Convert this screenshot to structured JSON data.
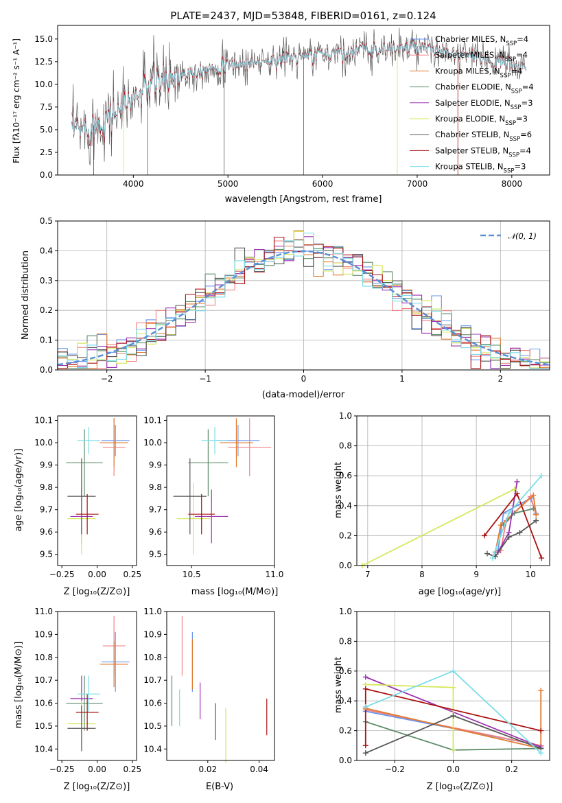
{
  "colors": {
    "s1": "#6495ED",
    "s2": "#F08080",
    "s3": "#E07B30",
    "s4": "#5E8C6A",
    "s5": "#9B30B0",
    "s6": "#D4E85A",
    "s7": "#555555",
    "s8": "#AA1111",
    "s9": "#7ADDE8",
    "gauss": "#5B8FD6",
    "grid": "#b0b0b0"
  },
  "chart_data": [
    {
      "id": "spectrum",
      "type": "line",
      "title": "PLATE=2437, MJD=53848, FIBERID=0161, z=0.124",
      "xlabel": "wavelength [Angstrom, rest frame]",
      "ylabel": "Flux [fλ10⁻¹⁷ erg cm⁻² s⁻¹ A⁻¹]",
      "xlim": [
        3200,
        8400
      ],
      "ylim": [
        0,
        16.5
      ],
      "xticks": [
        4000,
        5000,
        6000,
        7000,
        8000
      ],
      "xtick_labels": [
        "4000",
        "5000",
        "6000",
        "7000",
        "8000"
      ],
      "yticks": [
        0,
        2.5,
        5,
        7.5,
        10,
        12.5,
        15
      ],
      "ytick_labels": [
        "0.0",
        "2.5",
        "5.0",
        "7.5",
        "10.0",
        "12.5",
        "15.0"
      ],
      "grid": false,
      "legend_position": "right",
      "continuum": {
        "x": [
          3350,
          3600,
          3800,
          4000,
          4200,
          4400,
          4600,
          4800,
          5000,
          5200,
          5400,
          5600,
          5800,
          6000,
          6200,
          6400,
          6600,
          6800,
          7000,
          7200,
          7400,
          7600,
          7800,
          8000,
          8150
        ],
        "y": [
          4.8,
          5.5,
          6.8,
          8.5,
          10.0,
          10.8,
          11.3,
          11.8,
          12.0,
          12.3,
          12.5,
          12.9,
          13.0,
          13.4,
          13.5,
          13.8,
          13.9,
          14.0,
          14.0,
          13.7,
          13.3,
          13.0,
          12.6,
          12.2,
          11.8
        ]
      },
      "series": [
        {
          "name": "Chabrier MILES, N_SSP=4",
          "color_key": "s1"
        },
        {
          "name": "Salpeter MILES, N_SSP=4",
          "color_key": "s2"
        },
        {
          "name": "Kroupa MILES, N_SSP=4",
          "color_key": "s3"
        },
        {
          "name": "Chabrier ELODIE, N_SSP=4",
          "color_key": "s4"
        },
        {
          "name": "Salpeter ELODIE, N_SSP=3",
          "color_key": "s5"
        },
        {
          "name": "Kroupa ELODIE, N_SSP=3",
          "color_key": "s6"
        },
        {
          "name": "Chabrier STELIB, N_SSP=6",
          "color_key": "s7"
        },
        {
          "name": "Salpeter STELIB, N_SSP=4",
          "color_key": "s8"
        },
        {
          "name": "Kroupa STELIB, N_SSP=3",
          "color_key": "s9"
        }
      ]
    },
    {
      "id": "residuals",
      "type": "area",
      "xlabel": "(data-model)/error",
      "ylabel": "Normed distribution",
      "xlim": [
        -2.5,
        2.5
      ],
      "ylim": [
        0,
        0.5
      ],
      "xticks": [
        -2,
        -1,
        0,
        1,
        2
      ],
      "xtick_labels": [
        "−2",
        "−1",
        "0",
        "1",
        "2"
      ],
      "yticks": [
        0,
        0.1,
        0.2,
        0.3,
        0.4,
        0.5
      ],
      "ytick_labels": [
        "0.0",
        "0.1",
        "0.2",
        "0.3",
        "0.4",
        "0.5"
      ],
      "grid": true,
      "legend": [
        "𝒩(0, 1)"
      ],
      "legend_position": "top-right",
      "bin_width": 0.1,
      "gaussian": {
        "mean": 0,
        "sigma": 1,
        "style": "dashed"
      }
    },
    {
      "id": "age-vs-Z",
      "type": "scatter",
      "xlabel": "Z [log₁₀(Z/Z⊙)]",
      "ylabel": "age  [log₁₀(age/yr)]",
      "xlim": [
        -0.28,
        0.28
      ],
      "ylim": [
        9.45,
        10.12
      ],
      "xticks": [
        -0.25,
        0,
        0.25
      ],
      "xtick_labels": [
        "−0.25",
        "0.00",
        "0.25"
      ],
      "yticks": [
        9.5,
        9.6,
        9.7,
        9.8,
        9.9,
        10.0,
        10.1
      ],
      "ytick_labels": [
        "9.5",
        "9.6",
        "9.7",
        "9.8",
        "9.9",
        "10.0",
        "10.1"
      ],
      "points": [
        {
          "c": "s1",
          "x": 0.13,
          "xe": 0.1,
          "y": 10.01,
          "ye": 0.07
        },
        {
          "c": "s2",
          "x": 0.12,
          "xe": 0.08,
          "y": 9.98,
          "ye": 0.13
        },
        {
          "c": "s3",
          "x": 0.12,
          "xe": 0.1,
          "y": 10.0,
          "ye": 0.11
        },
        {
          "c": "s4",
          "x": -0.09,
          "xe": 0.13,
          "y": 9.91,
          "ye": 0.15
        },
        {
          "c": "s5",
          "x": -0.11,
          "xe": 0.08,
          "y": 9.67,
          "ye": 0.12
        },
        {
          "c": "s6",
          "x": -0.11,
          "xe": 0.1,
          "y": 9.66,
          "ye": 0.16
        },
        {
          "c": "s7",
          "x": -0.11,
          "xe": 0.1,
          "y": 9.76,
          "ye": 0.17
        },
        {
          "c": "s8",
          "x": -0.07,
          "xe": 0.08,
          "y": 9.68,
          "ye": 0.09
        },
        {
          "c": "s9",
          "x": -0.06,
          "xe": 0.08,
          "y": 10.01,
          "ye": 0.06
        }
      ]
    },
    {
      "id": "age-vs-mass",
      "type": "scatter",
      "xlabel": "mass [log₁₀(M/M⊙)]",
      "ylabel": "",
      "xlim": [
        10.35,
        11.0
      ],
      "ylim": [
        9.45,
        10.12
      ],
      "xticks": [
        10.5,
        11.0
      ],
      "xtick_labels": [
        "10.5",
        "11.0"
      ],
      "yticks": [
        9.5,
        9.6,
        9.7,
        9.8,
        9.9,
        10.0,
        10.1
      ],
      "ytick_labels": [
        "9.5",
        "9.6",
        "9.7",
        "9.8",
        "9.9",
        "10.0",
        "10.1"
      ],
      "points": [
        {
          "c": "s1",
          "x": 10.78,
          "xe": 0.13,
          "y": 10.01,
          "ye": 0.07
        },
        {
          "c": "s2",
          "x": 10.85,
          "xe": 0.13,
          "y": 9.98,
          "ye": 0.13
        },
        {
          "c": "s3",
          "x": 10.77,
          "xe": 0.1,
          "y": 10.0,
          "ye": 0.11
        },
        {
          "c": "s4",
          "x": 10.6,
          "xe": 0.12,
          "y": 9.91,
          "ye": 0.15
        },
        {
          "c": "s5",
          "x": 10.62,
          "xe": 0.1,
          "y": 9.67,
          "ye": 0.12
        },
        {
          "c": "s6",
          "x": 10.51,
          "xe": 0.1,
          "y": 9.66,
          "ye": 0.16
        },
        {
          "c": "s7",
          "x": 10.49,
          "xe": 0.1,
          "y": 9.76,
          "ye": 0.17
        },
        {
          "c": "s8",
          "x": 10.56,
          "xe": 0.08,
          "y": 9.68,
          "ye": 0.09
        },
        {
          "c": "s9",
          "x": 10.64,
          "xe": 0.08,
          "y": 10.01,
          "ye": 0.06
        }
      ]
    },
    {
      "id": "weight-vs-age",
      "type": "line",
      "xlabel": "age  [log₁₀(age/yr)]",
      "ylabel": "mass weight",
      "xlim": [
        6.8,
        10.35
      ],
      "ylim": [
        0,
        1.0
      ],
      "xticks": [
        7,
        8,
        9,
        10
      ],
      "xtick_labels": [
        "7",
        "8",
        "9",
        "10"
      ],
      "yticks": [
        0,
        0.2,
        0.4,
        0.6,
        0.8,
        1.0
      ],
      "ytick_labels": [
        "0.0",
        "0.2",
        "0.4",
        "0.6",
        "0.8",
        "1.0"
      ],
      "grid": true,
      "series": [
        {
          "c": "s1",
          "x": [
            9.4,
            9.5,
            10.0,
            10.1
          ],
          "y": [
            0.1,
            0.35,
            0.45,
            0.35
          ]
        },
        {
          "c": "s2",
          "x": [
            9.45,
            9.55,
            10.0,
            10.1
          ],
          "y": [
            0.1,
            0.3,
            0.46,
            0.34
          ]
        },
        {
          "c": "s3",
          "x": [
            9.35,
            9.45,
            10.05,
            10.1
          ],
          "y": [
            0.09,
            0.27,
            0.47,
            0.34
          ]
        },
        {
          "c": "s4",
          "x": [
            9.5,
            9.7,
            10.05
          ],
          "y": [
            0.27,
            0.35,
            0.38
          ]
        },
        {
          "c": "s5",
          "x": [
            9.4,
            9.6,
            9.75
          ],
          "y": [
            0.09,
            0.22,
            0.56
          ]
        },
        {
          "c": "s6",
          "x": [
            6.9,
            9.7
          ],
          "y": [
            0.0,
            0.51
          ]
        },
        {
          "c": "s7",
          "x": [
            9.2,
            9.35,
            9.6,
            9.8,
            10.1
          ],
          "y": [
            0.08,
            0.06,
            0.19,
            0.22,
            0.3
          ]
        },
        {
          "c": "s8",
          "x": [
            9.15,
            9.75,
            10.2
          ],
          "y": [
            0.2,
            0.48,
            0.05
          ]
        },
        {
          "c": "s9",
          "x": [
            9.3,
            9.6,
            10.2
          ],
          "y": [
            0.05,
            0.35,
            0.6
          ]
        }
      ]
    },
    {
      "id": "mass-vs-Z",
      "type": "scatter",
      "xlabel": "Z [log₁₀(Z/Z⊙)]",
      "ylabel": "mass [log₁₀(M/M⊙)]",
      "xlim": [
        -0.28,
        0.28
      ],
      "ylim": [
        10.35,
        11.0
      ],
      "xticks": [
        -0.25,
        0,
        0.25
      ],
      "xtick_labels": [
        "−0.25",
        "0.00",
        "0.25"
      ],
      "yticks": [
        10.4,
        10.5,
        10.6,
        10.7,
        10.8,
        10.9,
        11.0
      ],
      "ytick_labels": [
        "10.4",
        "10.5",
        "10.6",
        "10.7",
        "10.8",
        "10.9",
        "11.0"
      ],
      "points": [
        {
          "c": "s1",
          "x": 0.13,
          "xe": 0.1,
          "y": 10.78,
          "ye": 0.13
        },
        {
          "c": "s2",
          "x": 0.12,
          "xe": 0.08,
          "y": 10.85,
          "ye": 0.13
        },
        {
          "c": "s3",
          "x": 0.12,
          "xe": 0.1,
          "y": 10.77,
          "ye": 0.1
        },
        {
          "c": "s4",
          "x": -0.09,
          "xe": 0.13,
          "y": 10.6,
          "ye": 0.12
        },
        {
          "c": "s5",
          "x": -0.11,
          "xe": 0.08,
          "y": 10.62,
          "ye": 0.1
        },
        {
          "c": "s6",
          "x": -0.11,
          "xe": 0.1,
          "y": 10.51,
          "ye": 0.1
        },
        {
          "c": "s7",
          "x": -0.11,
          "xe": 0.1,
          "y": 10.49,
          "ye": 0.1
        },
        {
          "c": "s8",
          "x": -0.07,
          "xe": 0.08,
          "y": 10.56,
          "ye": 0.08
        },
        {
          "c": "s9",
          "x": -0.06,
          "xe": 0.08,
          "y": 10.64,
          "ye": 0.08
        }
      ]
    },
    {
      "id": "mass-vs-ebv",
      "type": "scatter",
      "xlabel": "E(B-V)",
      "ylabel": "",
      "xlim": [
        0.004,
        0.046
      ],
      "ylim": [
        10.35,
        11.0
      ],
      "xticks": [
        0.02,
        0.04
      ],
      "xtick_labels": [
        "0.02",
        "0.04"
      ],
      "yticks": [
        10.4,
        10.5,
        10.6,
        10.7,
        10.8,
        10.9,
        11.0
      ],
      "ytick_labels": [
        "10.4",
        "10.5",
        "10.6",
        "10.7",
        "10.8",
        "10.9",
        "11.0"
      ],
      "points": [
        {
          "c": "s1",
          "x": 0.014,
          "xe": 0,
          "y": 10.78,
          "ye": 0.13
        },
        {
          "c": "s2",
          "x": 0.01,
          "xe": 0,
          "y": 10.85,
          "ye": 0.13
        },
        {
          "c": "s3",
          "x": 0.014,
          "xe": 0,
          "y": 10.77,
          "ye": 0.11
        },
        {
          "c": "s4",
          "x": 0.006,
          "xe": 0,
          "y": 10.61,
          "ye": 0.11
        },
        {
          "c": "s5",
          "x": 0.017,
          "xe": 0,
          "y": 10.61,
          "ye": 0.08
        },
        {
          "c": "s6",
          "x": 0.027,
          "xe": 0,
          "y": 10.46,
          "ye": 0.12
        },
        {
          "c": "s7",
          "x": 0.023,
          "xe": 0,
          "y": 10.52,
          "ye": 0.08
        },
        {
          "c": "s8",
          "x": 0.043,
          "xe": 0,
          "y": 10.54,
          "ye": 0.08
        },
        {
          "c": "s9",
          "x": 0.009,
          "xe": 0,
          "y": 10.58,
          "ye": 0.08
        }
      ]
    },
    {
      "id": "weight-vs-Z",
      "type": "line",
      "xlabel": "Z [log₁₀(Z/Z⊙)]",
      "ylabel": "mass weight",
      "xlim": [
        -0.33,
        0.33
      ],
      "ylim": [
        0,
        1.0
      ],
      "xticks": [
        -0.2,
        0,
        0.2
      ],
      "xtick_labels": [
        "−0.2",
        "0.0",
        "0.2"
      ],
      "yticks": [
        0,
        0.2,
        0.4,
        0.6,
        0.8,
        1.0
      ],
      "ytick_labels": [
        "0.0",
        "0.2",
        "0.4",
        "0.6",
        "0.8",
        "1.0"
      ],
      "grid": true,
      "series": [
        {
          "c": "s1",
          "x": [
            -0.3,
            0.3
          ],
          "y": [
            0.33,
            0.1
          ]
        },
        {
          "c": "s2",
          "x": [
            -0.3,
            0.3
          ],
          "y": [
            0.34,
            0.1
          ]
        },
        {
          "c": "s3",
          "x": [
            -0.3,
            0.3,
            0.3
          ],
          "y": [
            0.35,
            0.08,
            0.47
          ]
        },
        {
          "c": "s4",
          "x": [
            -0.3,
            0.0,
            0.3
          ],
          "y": [
            0.26,
            0.07,
            0.08
          ]
        },
        {
          "c": "s5",
          "x": [
            -0.3,
            0.3
          ],
          "y": [
            0.56,
            0.09
          ]
        },
        {
          "c": "s6",
          "x": [
            -0.3,
            0.0,
            0.0
          ],
          "y": [
            0.51,
            0.49,
            0.07
          ]
        },
        {
          "c": "s7",
          "x": [
            -0.3,
            0.0,
            0.3
          ],
          "y": [
            0.05,
            0.3,
            0.08
          ]
        },
        {
          "c": "s8",
          "x": [
            -0.3,
            -0.3,
            0.3
          ],
          "y": [
            0.1,
            0.48,
            0.2
          ]
        },
        {
          "c": "s9",
          "x": [
            -0.3,
            0.0,
            0.3
          ],
          "y": [
            0.36,
            0.6,
            0.05
          ]
        }
      ]
    }
  ]
}
